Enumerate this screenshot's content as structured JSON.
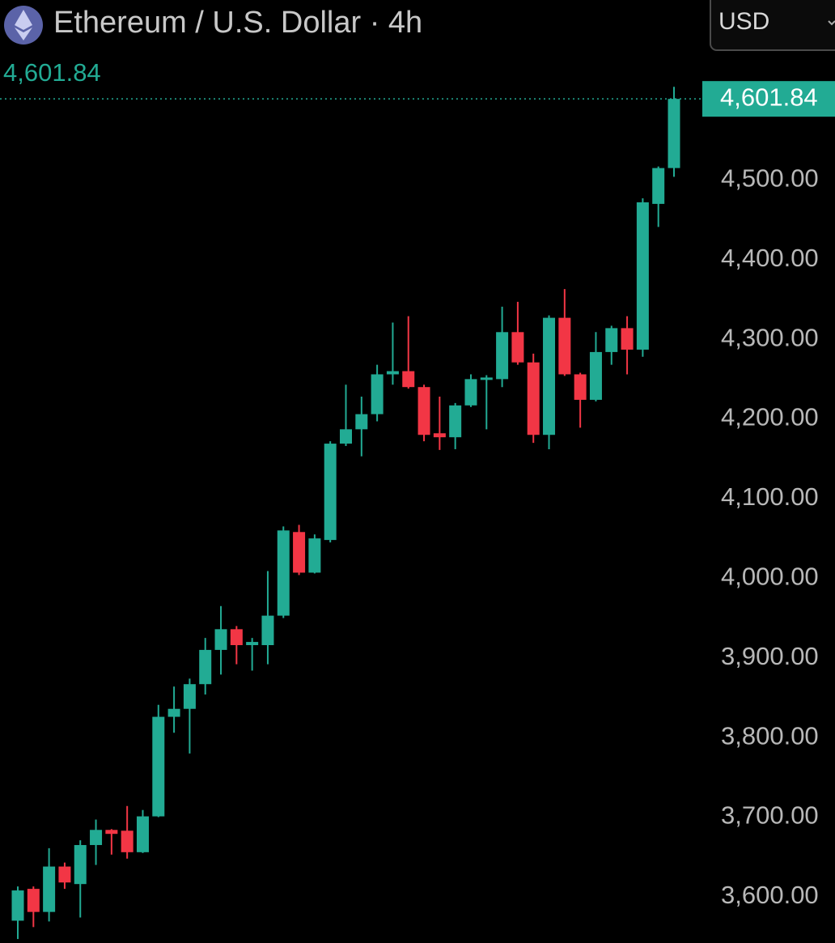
{
  "chart_data": {
    "type": "candlestick",
    "title": "Ethereum / U.S. Dollar · 4h",
    "currency": "USD",
    "last_price": {
      "value": 4601.84,
      "label": "4,601.84"
    },
    "up_color": "#22ab94",
    "down_color": "#f23645",
    "ylim": [
      3542,
      4726
    ],
    "yticks": [
      {
        "value": 3600,
        "label": "3,600.00"
      },
      {
        "value": 3700,
        "label": "3,700.00"
      },
      {
        "value": 3800,
        "label": "3,800.00"
      },
      {
        "value": 3900,
        "label": "3,900.00"
      },
      {
        "value": 4000,
        "label": "4,000.00"
      },
      {
        "value": 4100,
        "label": "4,100.00"
      },
      {
        "value": 4200,
        "label": "4,200.00"
      },
      {
        "value": 4300,
        "label": "4,300.00"
      },
      {
        "value": 4400,
        "label": "4,400.00"
      },
      {
        "value": 4500,
        "label": "4,500.00"
      }
    ],
    "open": [
      3570,
      3610,
      3581,
      3638,
      3616,
      3665,
      3684,
      3683,
      3656,
      3701,
      3826,
      3836,
      3867,
      3910,
      3936,
      3916,
      3916,
      3953,
      4058,
      4007,
      4048,
      4169,
      4187,
      4206,
      4256,
      4260,
      4240,
      4182,
      4177,
      4217,
      4249,
      4250,
      4309,
      4271,
      4180,
      4327,
      4256,
      4224,
      4284,
      4314,
      4287,
      4470,
      4515
    ],
    "high": [
      3613,
      3613,
      3661,
      3643,
      3671,
      3697,
      3685,
      3714,
      3709,
      3841,
      3864,
      3874,
      3925,
      3965,
      3940,
      3925,
      4009,
      4065,
      4067,
      4055,
      4172,
      4243,
      4228,
      4268,
      4321,
      4329,
      4243,
      4228,
      4220,
      4256,
      4255,
      4341,
      4347,
      4282,
      4330,
      4363,
      4258,
      4309,
      4317,
      4329,
      4477,
      4517,
      4617
    ],
    "low": [
      3547,
      3562,
      3569,
      3610,
      3574,
      3640,
      3653,
      3648,
      3655,
      3700,
      3806,
      3780,
      3854,
      3879,
      3892,
      3884,
      3892,
      3950,
      4004,
      4006,
      4045,
      4166,
      4153,
      4197,
      4243,
      4238,
      4172,
      4161,
      4162,
      4215,
      4187,
      4240,
      4268,
      4170,
      4162,
      4254,
      4189,
      4222,
      4268,
      4256,
      4278,
      4441,
      4504
    ],
    "close": [
      3608,
      3581,
      3638,
      3618,
      3665,
      3684,
      3679,
      3656,
      3701,
      3826,
      3836,
      3867,
      3910,
      3936,
      3916,
      3920,
      3953,
      4060,
      4007,
      4050,
      4169,
      4187,
      4206,
      4256,
      4260,
      4240,
      4180,
      4177,
      4217,
      4250,
      4252,
      4309,
      4271,
      4180,
      4327,
      4256,
      4224,
      4284,
      4314,
      4287,
      4472,
      4515,
      4601.84
    ]
  }
}
